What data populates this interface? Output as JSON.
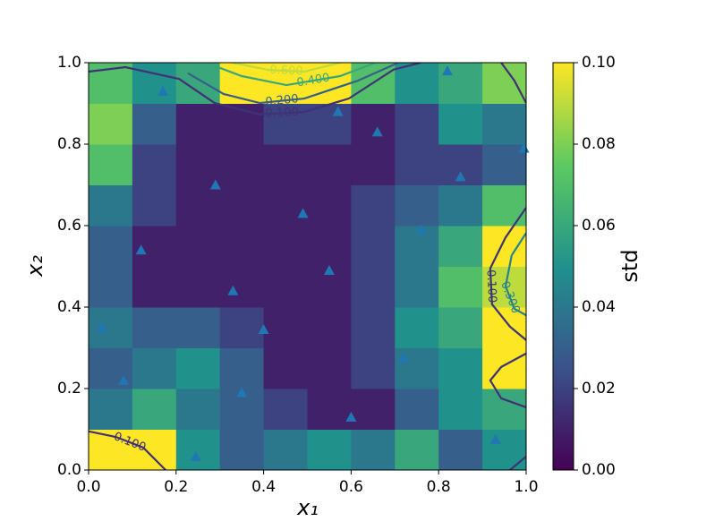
{
  "chart_data": {
    "type": "heatmap",
    "xlabel": "x₁",
    "ylabel": "x₂",
    "xlim": [
      0,
      1
    ],
    "ylim": [
      0,
      1
    ],
    "xticks": [
      {
        "value": 0,
        "label": "0.0"
      },
      {
        "value": 0.2,
        "label": "0.2"
      },
      {
        "value": 0.4,
        "label": "0.4"
      },
      {
        "value": 0.6,
        "label": "0.6"
      },
      {
        "value": 0.8,
        "label": "0.8"
      },
      {
        "value": 1,
        "label": "1.0"
      }
    ],
    "yticks": [
      {
        "value": 0,
        "label": "0.0"
      },
      {
        "value": 0.2,
        "label": "0.2"
      },
      {
        "value": 0.4,
        "label": "0.4"
      },
      {
        "value": 0.6,
        "label": "0.6"
      },
      {
        "value": 0.8,
        "label": "0.8"
      },
      {
        "value": 1,
        "label": "1.0"
      }
    ],
    "colormap": [
      "#440154",
      "#3b528b",
      "#21918c",
      "#5ec962",
      "#fde725"
    ],
    "z": [
      [
        0.1,
        0.1,
        0.05,
        0.03,
        0.04,
        0.05,
        0.04,
        0.06,
        0.03,
        0.05
      ],
      [
        0.04,
        0.06,
        0.04,
        0.03,
        0.02,
        0.01,
        0.01,
        0.03,
        0.05,
        0.06
      ],
      [
        0.03,
        0.04,
        0.05,
        0.03,
        0.01,
        0.01,
        0.02,
        0.04,
        0.05,
        0.1
      ],
      [
        0.04,
        0.03,
        0.03,
        0.02,
        0.01,
        0.01,
        0.02,
        0.05,
        0.06,
        0.1
      ],
      [
        0.03,
        0.01,
        0.01,
        0.01,
        0.01,
        0.01,
        0.02,
        0.04,
        0.07,
        0.09
      ],
      [
        0.03,
        0.01,
        0.01,
        0.01,
        0.01,
        0.01,
        0.02,
        0.04,
        0.06,
        0.1
      ],
      [
        0.04,
        0.02,
        0.01,
        0.01,
        0.01,
        0.01,
        0.02,
        0.03,
        0.04,
        0.07
      ],
      [
        0.07,
        0.02,
        0.01,
        0.01,
        0.01,
        0.01,
        0.01,
        0.02,
        0.02,
        0.03
      ],
      [
        0.08,
        0.03,
        0.01,
        0.01,
        0.02,
        0.02,
        0.01,
        0.02,
        0.05,
        0.04
      ],
      [
        0.07,
        0.05,
        0.06,
        0.1,
        0.1,
        0.1,
        0.07,
        0.05,
        0.06,
        0.08
      ]
    ],
    "colorbar": {
      "label": "std",
      "lim": [
        0,
        0.1
      ],
      "ticks": [
        {
          "value": 0,
          "label": "0.00"
        },
        {
          "value": 0.02,
          "label": "0.02"
        },
        {
          "value": 0.04,
          "label": "0.04"
        },
        {
          "value": 0.06,
          "label": "0.06"
        },
        {
          "value": 0.08,
          "label": "0.08"
        },
        {
          "value": 0.1,
          "label": "0.10"
        }
      ]
    },
    "points": {
      "color": "#1f77b4",
      "x": [
        0.17,
        0.82,
        0.57,
        0.66,
        0.995,
        0.29,
        0.85,
        0.49,
        0.12,
        0.76,
        0.55,
        0.33,
        0.03,
        0.4,
        0.72,
        0.08,
        0.35,
        0.6,
        0.93,
        0.245
      ],
      "y": [
        0.93,
        0.98,
        0.88,
        0.83,
        0.79,
        0.7,
        0.72,
        0.63,
        0.54,
        0.59,
        0.49,
        0.44,
        0.35,
        0.345,
        0.275,
        0.22,
        0.19,
        0.13,
        0.075,
        0.033
      ]
    },
    "contours": [
      {
        "level": 0.1,
        "label": "0.100",
        "x": [
          0,
          0.084,
          0.207,
          0.288,
          0.391,
          0.493,
          0.595,
          0.697,
          0.759
        ],
        "y": [
          0.978,
          0.989,
          0.96,
          0.901,
          0.873,
          0.879,
          0.912,
          0.983,
          1
        ]
      },
      {
        "level": 0.2,
        "label": "0.200",
        "x": [
          0.227,
          0.309,
          0.391,
          0.493,
          0.616,
          0.708
        ],
        "y": [
          0.974,
          0.923,
          0.901,
          0.912,
          0.956,
          1
        ]
      },
      {
        "level": 0.4,
        "label": "0.400",
        "x": [
          0.268,
          0.35,
          0.452,
          0.575,
          0.656
        ],
        "y": [
          1,
          0.967,
          0.945,
          0.967,
          1
        ]
      },
      {
        "level": 0.6,
        "label": "0.600",
        "x": [
          0.329,
          0.411,
          0.493,
          0.575
        ],
        "y": [
          1,
          0.982,
          0.978,
          1
        ]
      },
      {
        "level": 0.1,
        "x": [
          0.943,
          0.973,
          1
        ],
        "y": [
          1,
          0.956,
          0.901
        ]
      },
      {
        "level": 0.1,
        "label": "0.100",
        "x": [
          1,
          0.953,
          0.918,
          0.922,
          0.963,
          1
        ],
        "y": [
          0.644,
          0.571,
          0.495,
          0.407,
          0.352,
          0.319
        ]
      },
      {
        "level": 0.3,
        "label": "0.300",
        "x": [
          1,
          0.967,
          0.953,
          0.973,
          1
        ],
        "y": [
          0.582,
          0.527,
          0.451,
          0.396,
          0.38
        ]
      },
      {
        "level": 0.1,
        "x": [
          1,
          0.943,
          0.918,
          0.943,
          1
        ],
        "y": [
          0.286,
          0.253,
          0.22,
          0.176,
          0.154
        ]
      },
      {
        "level": 0.1,
        "label": "0.100",
        "x": [
          0,
          0.063,
          0.125,
          0.176
        ],
        "y": [
          0.095,
          0.081,
          0.055,
          0
        ]
      },
      {
        "level": 0.1,
        "x": [
          0.963,
          1
        ],
        "y": [
          0,
          0.033
        ]
      }
    ]
  }
}
